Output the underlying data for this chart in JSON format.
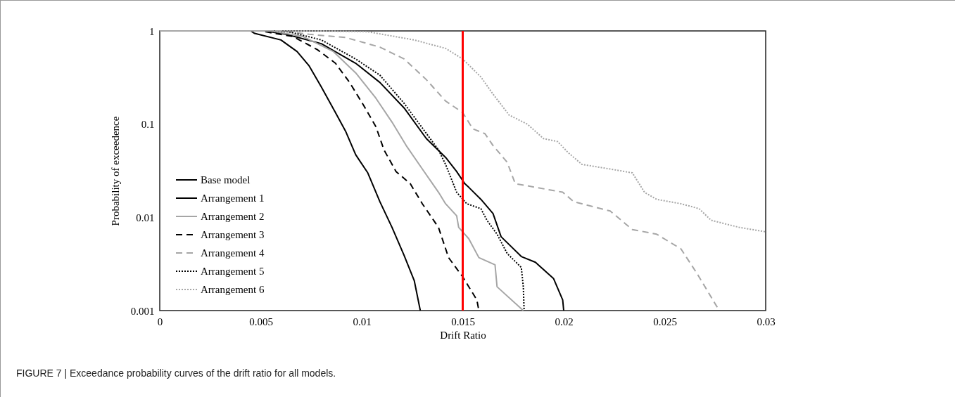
{
  "chart_data": {
    "type": "line",
    "xlabel": "Drift Ratio",
    "ylabel": "Probability of exceedence",
    "log": "y",
    "grid": false,
    "legend": "bottom left",
    "xlim": [
      0,
      0.03
    ],
    "xticks": [
      0,
      0.005,
      0.01,
      0.015,
      0.02,
      0.025,
      0.03
    ],
    "ylim": [
      0.001,
      1
    ],
    "yticks": [
      0.001,
      0.01,
      0.1,
      1
    ],
    "ref_lines": [
      {
        "axis": "x",
        "value": 0.015,
        "color": "#ff0000"
      }
    ],
    "annotations": [
      "FIGURE 7 | Exceedance probability curves of the drift ratio for all models."
    ],
    "series": [
      {
        "name": "Base model",
        "color": "#000000",
        "line_style": "solid",
        "x": [
          0,
          0.0052,
          0.00625,
          0.008,
          0.0097,
          0.0109,
          0.0121,
          0.0132,
          0.01415,
          0.0147,
          0.0151,
          0.0153,
          0.0159,
          0.0165,
          0.0169,
          0.0179,
          0.0186,
          0.0195,
          0.01995,
          0.02
        ],
        "values": [
          1,
          1,
          0.92,
          0.73,
          0.45,
          0.28,
          0.149,
          0.07,
          0.044,
          0.031,
          0.023,
          0.021,
          0.0156,
          0.011,
          0.0062,
          0.0038,
          0.0033,
          0.0022,
          0.0013,
          0.001
        ]
      },
      {
        "name": "Arrangement 1",
        "color": "#000000",
        "line_style": "solid",
        "x": [
          0,
          0.0045,
          0.0047,
          0.006,
          0.0068,
          0.0074,
          0.008,
          0.0087,
          0.0092,
          0.0097,
          0.0103,
          0.0109,
          0.0115,
          0.0121,
          0.0126,
          0.0129
        ],
        "values": [
          1,
          1,
          0.94,
          0.8,
          0.6,
          0.42,
          0.25,
          0.133,
          0.084,
          0.047,
          0.03,
          0.0147,
          0.0078,
          0.0039,
          0.0021,
          0.001
        ]
      },
      {
        "name": "Arrangement 2",
        "color": "#a6a6a6",
        "line_style": "solid",
        "x": [
          0,
          0.0055,
          0.0071,
          0.0086,
          0.0097,
          0.0107,
          0.0115,
          0.0122,
          0.013,
          0.0138,
          0.01415,
          0.0147,
          0.0148,
          0.0153,
          0.0158,
          0.0166,
          0.0167,
          0.018
        ],
        "values": [
          1,
          1,
          0.87,
          0.6,
          0.355,
          0.19,
          0.105,
          0.059,
          0.033,
          0.0186,
          0.014,
          0.0104,
          0.0078,
          0.0059,
          0.0037,
          0.0031,
          0.0018,
          0.001
        ]
      },
      {
        "name": "Arrangement 3",
        "color": "#000000",
        "line_style": "dashed",
        "x": [
          0,
          0.005,
          0.0066,
          0.0078,
          0.0087,
          0.0094,
          0.0101,
          0.0107,
          0.0111,
          0.0117,
          0.0124,
          0.013,
          0.0138,
          0.0143,
          0.015,
          0.0157,
          0.0158
        ],
        "values": [
          1,
          1,
          0.87,
          0.63,
          0.45,
          0.28,
          0.158,
          0.094,
          0.053,
          0.031,
          0.023,
          0.014,
          0.0078,
          0.0037,
          0.0023,
          0.0013,
          0.001
        ]
      },
      {
        "name": "Arrangement 4",
        "color": "#a6a6a6",
        "line_style": "dashed",
        "x": [
          0,
          0.006,
          0.0074,
          0.0092,
          0.0109,
          0.0121,
          0.0132,
          0.01415,
          0.015,
          0.0155,
          0.0161,
          0.0165,
          0.0172,
          0.0176,
          0.01995,
          0.0205,
          0.0223,
          0.0234,
          0.0246,
          0.0258,
          0.0266,
          0.0277
        ],
        "values": [
          1,
          1,
          0.92,
          0.85,
          0.67,
          0.5,
          0.3,
          0.177,
          0.133,
          0.089,
          0.079,
          0.059,
          0.039,
          0.023,
          0.0186,
          0.0147,
          0.0117,
          0.0074,
          0.0066,
          0.0046,
          0.0025,
          0.001
        ]
      },
      {
        "name": "Arrangement 5",
        "color": "#000000",
        "line_style": "dotted",
        "x": [
          0,
          0.0055,
          0.0064,
          0.008,
          0.0097,
          0.0109,
          0.0121,
          0.0138,
          0.01415,
          0.0147,
          0.0152,
          0.0159,
          0.0162,
          0.0167,
          0.0172,
          0.0179,
          0.018,
          0.01804
        ],
        "values": [
          1,
          1,
          0.98,
          0.8,
          0.5,
          0.335,
          0.167,
          0.053,
          0.037,
          0.0186,
          0.014,
          0.0124,
          0.0093,
          0.0066,
          0.0041,
          0.0029,
          0.0018,
          0.001
        ]
      },
      {
        "name": "Arrangement 6",
        "color": "#a6a6a6",
        "line_style": "dotted",
        "x": [
          0,
          0.008,
          0.0103,
          0.0126,
          0.01415,
          0.015,
          0.0159,
          0.0165,
          0.0173,
          0.0182,
          0.019,
          0.0197,
          0.0202,
          0.0209,
          0.0223,
          0.0234,
          0.024,
          0.0246,
          0.0258,
          0.0267,
          0.0273,
          0.0287,
          0.03
        ],
        "values": [
          1,
          1,
          0.98,
          0.8,
          0.65,
          0.5,
          0.32,
          0.21,
          0.125,
          0.1,
          0.07,
          0.065,
          0.05,
          0.037,
          0.033,
          0.03,
          0.0186,
          0.0156,
          0.014,
          0.0124,
          0.0093,
          0.0078,
          0.007
        ]
      }
    ]
  }
}
